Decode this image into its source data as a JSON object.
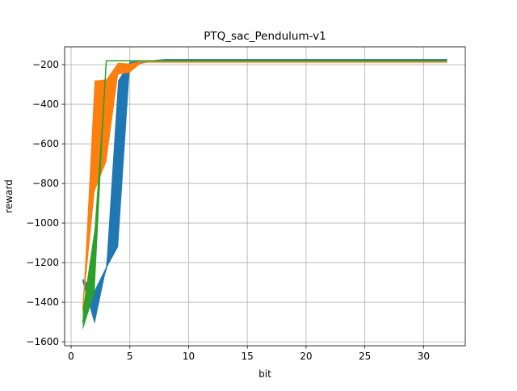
{
  "chart_data": {
    "type": "line",
    "title": "PTQ_sac_Pendulum-v1",
    "xlabel": "bit",
    "ylabel": "reward",
    "xlim": [
      -0.55,
      33.55
    ],
    "ylim": [
      -1620,
      -110
    ],
    "xticks": [
      0,
      5,
      10,
      15,
      20,
      25,
      30
    ],
    "xtick_labels": [
      "0",
      "5",
      "10",
      "15",
      "20",
      "25",
      "30"
    ],
    "yticks": [
      -1600,
      -1400,
      -1200,
      -1000,
      -800,
      -600,
      -400,
      -200
    ],
    "ytick_labels": [
      "−1600",
      "−1400",
      "−1200",
      "−1000",
      "−800",
      "−600",
      "−400",
      "−200"
    ],
    "grid": true,
    "legend": "none",
    "x": [
      1,
      2,
      3,
      4,
      5,
      6,
      7,
      8,
      32
    ],
    "series": [
      {
        "color": "#1f77b4",
        "mean": [
          -1290,
          -1420,
          -1230,
          -720,
          -200,
          -188,
          -180,
          -175,
          -175
        ],
        "upper": [
          -1280,
          -1340,
          -1220,
          -280,
          -185,
          -182,
          -178,
          -173,
          -173
        ],
        "lower": [
          -1300,
          -1510,
          -1230,
          -1120,
          -215,
          -195,
          -183,
          -178,
          -178
        ]
      },
      {
        "color": "#ff7f0e",
        "mean": [
          -1440,
          -560,
          -480,
          -220,
          -215,
          -185,
          -185,
          -185,
          -185
        ],
        "upper": [
          -1440,
          -280,
          -275,
          -190,
          -195,
          -180,
          -180,
          -180,
          -180
        ],
        "lower": [
          -1440,
          -840,
          -690,
          -250,
          -240,
          -190,
          -190,
          -190,
          -190
        ]
      },
      {
        "color": "#2ca02c",
        "mean": [
          -1500,
          -1190,
          -180,
          -180,
          -180,
          -180,
          -180,
          -180,
          -180
        ],
        "upper": [
          -1440,
          -1030,
          -180,
          -180,
          -180,
          -180,
          -180,
          -180,
          -180
        ],
        "lower": [
          -1540,
          -1350,
          -180,
          -180,
          -180,
          -180,
          -180,
          -180,
          -180
        ]
      }
    ]
  }
}
